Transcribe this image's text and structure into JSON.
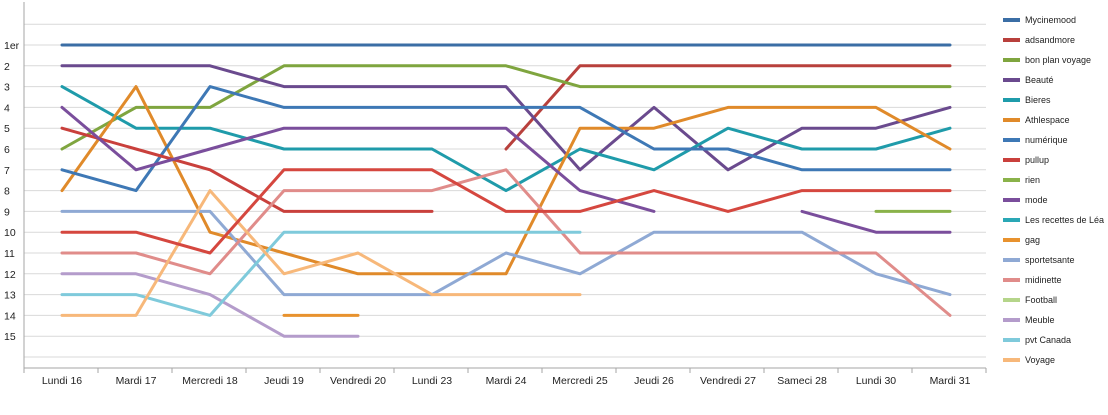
{
  "chart_data": {
    "type": "line",
    "title": "",
    "xlabel": "",
    "ylabel": "",
    "categories": [
      "Lundi 16",
      "Mardi 17",
      "Mercredi 18",
      "Jeudi 19",
      "Vendredi 20",
      "Lundi 23",
      "Mardi 24",
      "Mercredi 25",
      "Jeudi 26",
      "Vendredi 27",
      "Sameci 28",
      "Lundi 30",
      "Mardi 31"
    ],
    "y_tick_labels": [
      "1er",
      "2",
      "3",
      "4",
      "5",
      "6",
      "7",
      "8",
      "9",
      "10",
      "11",
      "12",
      "13",
      "14",
      "15"
    ],
    "y_reversed": true,
    "ylim": [
      1,
      16
    ],
    "grid": "horizontal",
    "legend_position": "right",
    "series": [
      {
        "name": "Mycinemood",
        "color": "#3B6EA5",
        "values": [
          1,
          1,
          1,
          1,
          1,
          1,
          1,
          1,
          1,
          1,
          1,
          1,
          1
        ]
      },
      {
        "name": "adsandmore",
        "color": "#B8403C",
        "values": [
          null,
          null,
          null,
          null,
          null,
          null,
          6,
          2,
          2,
          2,
          2,
          2,
          2
        ]
      },
      {
        "name": "bon plan voyage",
        "color": "#7FA53F",
        "values": [
          6,
          4,
          4,
          2,
          2,
          2,
          2,
          3,
          3,
          3,
          3,
          3,
          3
        ]
      },
      {
        "name": "Beauté",
        "color": "#6A4A8E",
        "values": [
          2,
          2,
          2,
          3,
          3,
          3,
          3,
          7,
          4,
          7,
          5,
          5,
          4
        ]
      },
      {
        "name": "Bieres",
        "color": "#1F9BAA",
        "values": [
          3,
          5,
          5,
          6,
          6,
          6,
          8,
          6,
          7,
          5,
          6,
          6,
          5
        ]
      },
      {
        "name": "Athlespace",
        "color": "#E08A2A",
        "values": [
          8,
          3,
          10,
          11,
          12,
          12,
          12,
          5,
          5,
          4,
          4,
          4,
          6
        ]
      },
      {
        "name": "numérique",
        "color": "#3E78B5",
        "values": [
          7,
          8,
          3,
          4,
          4,
          4,
          4,
          4,
          6,
          6,
          7,
          7,
          7
        ]
      },
      {
        "name": "pullup",
        "color": "#C9403C",
        "values": [
          5,
          6,
          7,
          9,
          9,
          9,
          null,
          null,
          null,
          null,
          null,
          null,
          null
        ]
      },
      {
        "name": "rien",
        "color": "#8AB24A",
        "values": [
          null,
          null,
          null,
          null,
          null,
          null,
          null,
          null,
          null,
          null,
          null,
          9,
          9
        ]
      },
      {
        "name": "mode",
        "color": "#7A4E9C",
        "values": [
          4,
          7,
          6,
          5,
          5,
          5,
          5,
          8,
          9,
          null,
          9,
          10,
          10
        ]
      },
      {
        "name": "Les recettes de Léa",
        "color": "#2AA7B5",
        "values": [
          null,
          null,
          null,
          null,
          null,
          null,
          null,
          null,
          null,
          null,
          null,
          null,
          null
        ]
      },
      {
        "name": "gag",
        "color": "#E8922E",
        "values": [
          null,
          null,
          null,
          14,
          14,
          null,
          null,
          null,
          null,
          null,
          null,
          null,
          null
        ]
      },
      {
        "name": "sportetsante",
        "color": "#8FA9D4",
        "values": [
          9,
          9,
          9,
          13,
          13,
          13,
          11,
          12,
          10,
          10,
          10,
          12,
          13
        ]
      },
      {
        "name": "midinette",
        "color": "#E08C8A",
        "values": [
          11,
          11,
          12,
          8,
          8,
          8,
          7,
          11,
          11,
          11,
          11,
          11,
          14
        ]
      },
      {
        "name": "Football",
        "color": "#B5D58A",
        "values": [
          null,
          null,
          null,
          null,
          null,
          null,
          null,
          null,
          null,
          null,
          null,
          null,
          null
        ]
      },
      {
        "name": "Meuble",
        "color": "#B49CCB",
        "values": [
          12,
          12,
          13,
          15,
          15,
          null,
          null,
          null,
          null,
          null,
          null,
          null,
          null
        ]
      },
      {
        "name": "pvt Canada",
        "color": "#7FCADB",
        "values": [
          13,
          13,
          14,
          10,
          10,
          10,
          10,
          10,
          null,
          null,
          null,
          null,
          null
        ]
      },
      {
        "name": "Voyage",
        "color": "#F7B87A",
        "values": [
          14,
          14,
          8,
          12,
          11,
          13,
          13,
          13,
          null,
          null,
          null,
          null,
          null
        ]
      },
      {
        "name": "",
        "color": "#D5473F",
        "values": [
          10,
          10,
          11,
          7,
          7,
          7,
          9,
          9,
          8,
          9,
          8,
          8,
          8
        ]
      }
    ]
  }
}
